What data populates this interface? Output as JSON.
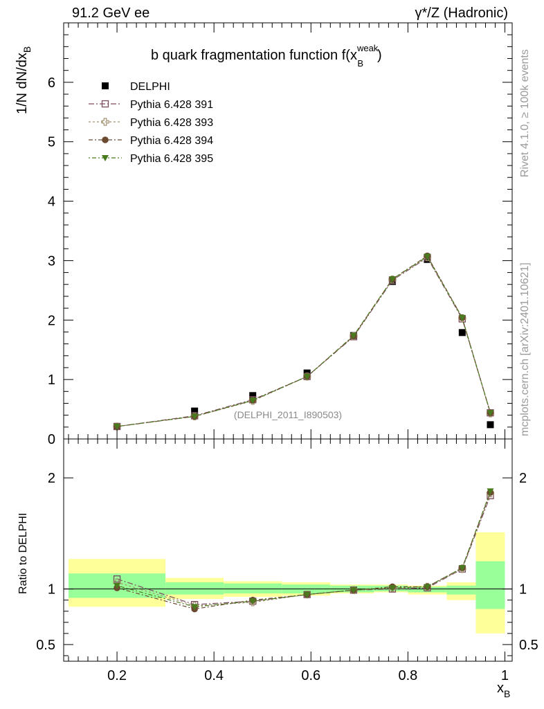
{
  "header": {
    "energy": "91.2 GeV ee",
    "process": "γ*/Z (Hadronic)"
  },
  "side_labels": {
    "rivet": "Rivet 4.1.0, ≥ 100k events",
    "mcplots": "mcplots.cern.ch [arXiv:2401.10621]"
  },
  "chart_data": [
    {
      "type": "scatter",
      "panel": "main",
      "title": "b quark fragmentation function f(x_B^weak)",
      "title_parts": {
        "main": "b quark fragmentation function f(x",
        "sup": "weak",
        "sub": "B",
        "close": ")"
      },
      "ylabel": "1/N  dN/dx_B",
      "ylabel_parts": {
        "main": "1/N  dN/dx",
        "sub": "B"
      },
      "analysis_tag": "(DELPHI_2011_I890503)",
      "xlim": [
        0.09,
        1.015
      ],
      "ylim": [
        0,
        7.0
      ],
      "yticks": [
        0,
        1,
        2,
        3,
        4,
        5,
        6
      ],
      "yticklabels": [
        "0",
        "1",
        "2",
        "3",
        "4",
        "5",
        "6"
      ],
      "legend_position": "top-left",
      "x": [
        0.2,
        0.36,
        0.48,
        0.592,
        0.688,
        0.768,
        0.84,
        0.912,
        0.97
      ],
      "series": [
        {
          "name": "DELPHI",
          "style": "data",
          "color": "#000000",
          "values": [
            0.21,
            0.47,
            0.73,
            1.11,
            1.74,
            2.65,
            3.02,
            1.79,
            0.24
          ]
        },
        {
          "name": "Pythia 6.428 391",
          "style": "open-square",
          "color": "#7a4a5e",
          "values": [
            0.21,
            0.39,
            0.66,
            1.05,
            1.72,
            2.67,
            3.05,
            2.02,
            0.44
          ]
        },
        {
          "name": "Pythia 6.428 393",
          "style": "open-cross",
          "color": "#a09070",
          "values": [
            0.21,
            0.38,
            0.64,
            1.05,
            1.73,
            2.68,
            3.06,
            2.03,
            0.43
          ]
        },
        {
          "name": "Pythia 6.428 394",
          "style": "filled-circle",
          "color": "#6b4a32",
          "values": [
            0.21,
            0.38,
            0.65,
            1.05,
            1.73,
            2.69,
            3.08,
            2.04,
            0.44
          ]
        },
        {
          "name": "Pythia 6.428 395",
          "style": "filled-triangle-down",
          "color": "#4a7a1e",
          "values": [
            0.21,
            0.38,
            0.65,
            1.05,
            1.74,
            2.69,
            3.07,
            2.04,
            0.44
          ]
        }
      ]
    },
    {
      "type": "scatter",
      "panel": "ratio",
      "ylabel": "Ratio to DELPHI",
      "xlabel": "x_B",
      "xlabel_parts": {
        "main": "x",
        "sub": "B"
      },
      "xlim": [
        0.09,
        1.015
      ],
      "ylim": [
        0.35,
        2.35
      ],
      "xticks": [
        0.2,
        0.4,
        0.6,
        0.8,
        1.0
      ],
      "xticklabels": [
        "0.2",
        "0.4",
        "0.6",
        "0.8",
        "1"
      ],
      "yticks": [
        0.5,
        1,
        2
      ],
      "yticklabels": [
        "0.5",
        "1",
        "2"
      ],
      "reference_line": 1.0,
      "bands": {
        "bin_edges": [
          0.1,
          0.3,
          0.42,
          0.54,
          0.64,
          0.73,
          0.8,
          0.88,
          0.94,
          1.0
        ],
        "yellow": [
          [
            0.84,
            1.27
          ],
          [
            0.91,
            1.1
          ],
          [
            0.93,
            1.07
          ],
          [
            0.94,
            1.06
          ],
          [
            0.96,
            1.04
          ],
          [
            0.97,
            1.04
          ],
          [
            0.95,
            1.03
          ],
          [
            0.9,
            1.06
          ],
          [
            0.6,
            1.51
          ]
        ],
        "green": [
          [
            0.92,
            1.14
          ],
          [
            0.95,
            1.06
          ],
          [
            0.96,
            1.05
          ],
          [
            0.96,
            1.04
          ],
          [
            0.97,
            1.03
          ],
          [
            0.98,
            1.03
          ],
          [
            0.97,
            1.02
          ],
          [
            0.95,
            1.03
          ],
          [
            0.82,
            1.25
          ]
        ],
        "yellow_color": "#ffff99",
        "green_color": "#99ff99"
      },
      "x": [
        0.2,
        0.36,
        0.48,
        0.592,
        0.688,
        0.768,
        0.84,
        0.912,
        0.97
      ],
      "series": [
        {
          "name": "Pythia 6.428 391",
          "style": "open-square",
          "color": "#7a4a5e",
          "values": [
            1.09,
            0.86,
            0.89,
            0.95,
            0.99,
            1.0,
            1.01,
            1.18,
            1.84
          ]
        },
        {
          "name": "Pythia 6.428 393",
          "style": "open-cross",
          "color": "#a09070",
          "values": [
            1.06,
            0.85,
            0.88,
            0.95,
            0.99,
            1.01,
            1.02,
            1.18,
            1.86
          ]
        },
        {
          "name": "Pythia 6.428 394",
          "style": "filled-circle",
          "color": "#6b4a32",
          "values": [
            1.01,
            0.82,
            0.9,
            0.95,
            0.99,
            1.02,
            1.02,
            1.19,
            1.87
          ]
        },
        {
          "name": "Pythia 6.428 395",
          "style": "filled-triangle-down",
          "color": "#4a7a1e",
          "values": [
            1.03,
            0.84,
            0.89,
            0.95,
            0.99,
            1.01,
            1.02,
            1.19,
            1.88
          ]
        }
      ]
    }
  ]
}
